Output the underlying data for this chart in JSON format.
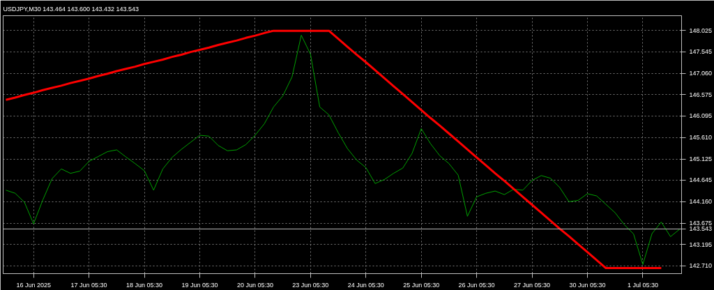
{
  "chart_data": {
    "type": "line",
    "title": "USDJPY,M30  143.464 143.600 143.432 143.543",
    "categories": [
      null,
      null,
      null,
      "16 Jun 2025",
      null,
      null,
      null,
      null,
      null,
      "17 Jun 05:30",
      null,
      null,
      null,
      null,
      null,
      "18 Jun 05:30",
      null,
      null,
      null,
      null,
      null,
      "19 Jun 05:30",
      null,
      null,
      null,
      null,
      null,
      "20 Jun 05:30",
      null,
      null,
      null,
      null,
      null,
      "23 Jun 05:30",
      null,
      null,
      null,
      null,
      null,
      "24 Jun 05:30",
      null,
      null,
      null,
      null,
      null,
      "25 Jun 05:30",
      null,
      null,
      null,
      null,
      null,
      "26 Jun 05:30",
      null,
      null,
      null,
      null,
      null,
      "27 Jun 05:30",
      null,
      null,
      null,
      null,
      null,
      "30 Jun 05:30",
      null,
      null,
      null,
      null,
      null,
      "1 Jul 05:30",
      null,
      null,
      null,
      null
    ],
    "ylim": [
      142.535,
      148.361
    ],
    "yticks": [
      {
        "value": 142.71,
        "label": "142.710"
      },
      {
        "value": 143.195,
        "label": "143.195"
      },
      {
        "value": 143.675,
        "label": "143.675"
      },
      {
        "value": 144.16,
        "label": "144.160"
      },
      {
        "value": 144.645,
        "label": "144.645"
      },
      {
        "value": 145.125,
        "label": "145.125"
      },
      {
        "value": 145.61,
        "label": "145.610"
      },
      {
        "value": 146.095,
        "label": "146.095"
      },
      {
        "value": 146.575,
        "label": "146.575"
      },
      {
        "value": 147.06,
        "label": "147.060"
      },
      {
        "value": 147.545,
        "label": "147.545"
      },
      {
        "value": 148.025,
        "label": "148.025"
      }
    ],
    "grid": true,
    "marker": "none",
    "line_style": "solid",
    "ref_lines": [
      {
        "axis": "y",
        "value": 143.543,
        "label": "143.543",
        "color": "#c0c0c0"
      }
    ],
    "series": [
      {
        "color": "#00a000",
        "values": [
          144.42,
          144.35,
          144.15,
          143.66,
          144.2,
          144.68,
          144.9,
          144.8,
          144.85,
          145.07,
          145.18,
          145.29,
          145.33,
          145.17,
          145.02,
          144.86,
          144.42,
          144.9,
          145.16,
          145.34,
          145.5,
          145.66,
          145.64,
          145.43,
          145.31,
          145.33,
          145.45,
          145.66,
          145.92,
          146.3,
          146.55,
          146.98,
          147.92,
          147.49,
          146.3,
          146.12,
          145.72,
          145.36,
          145.1,
          144.93,
          144.57,
          144.66,
          144.8,
          144.92,
          145.25,
          145.81,
          145.47,
          145.2,
          145.02,
          144.76,
          143.83,
          144.27,
          144.35,
          144.4,
          144.32,
          144.44,
          144.42,
          144.64,
          144.75,
          144.69,
          144.48,
          144.16,
          144.19,
          144.34,
          144.29,
          144.1,
          143.91,
          143.64,
          143.43,
          142.74,
          143.44,
          143.7,
          143.37,
          143.54
        ]
      },
      {
        "color": "#ff0000",
        "values": [
          146.46,
          146.51,
          146.57,
          146.62,
          146.68,
          146.73,
          146.78,
          146.84,
          146.89,
          146.94,
          147.0,
          147.05,
          147.11,
          147.16,
          147.21,
          147.27,
          147.32,
          147.37,
          147.43,
          147.48,
          147.54,
          147.59,
          147.64,
          147.7,
          147.75,
          147.8,
          147.86,
          147.91,
          147.97,
          148.02,
          148.02,
          148.02,
          148.02,
          148.02,
          148.02,
          148.02,
          147.84,
          147.66,
          147.48,
          147.31,
          147.13,
          146.95,
          146.77,
          146.59,
          146.41,
          146.23,
          146.05,
          145.88,
          145.7,
          145.52,
          145.34,
          145.16,
          144.98,
          144.8,
          144.63,
          144.45,
          144.27,
          144.09,
          143.91,
          143.73,
          143.55,
          143.38,
          143.2,
          143.02,
          142.84,
          142.66,
          142.66,
          142.66,
          142.66,
          142.66,
          142.66,
          142.66,
          null,
          null
        ]
      }
    ]
  }
}
